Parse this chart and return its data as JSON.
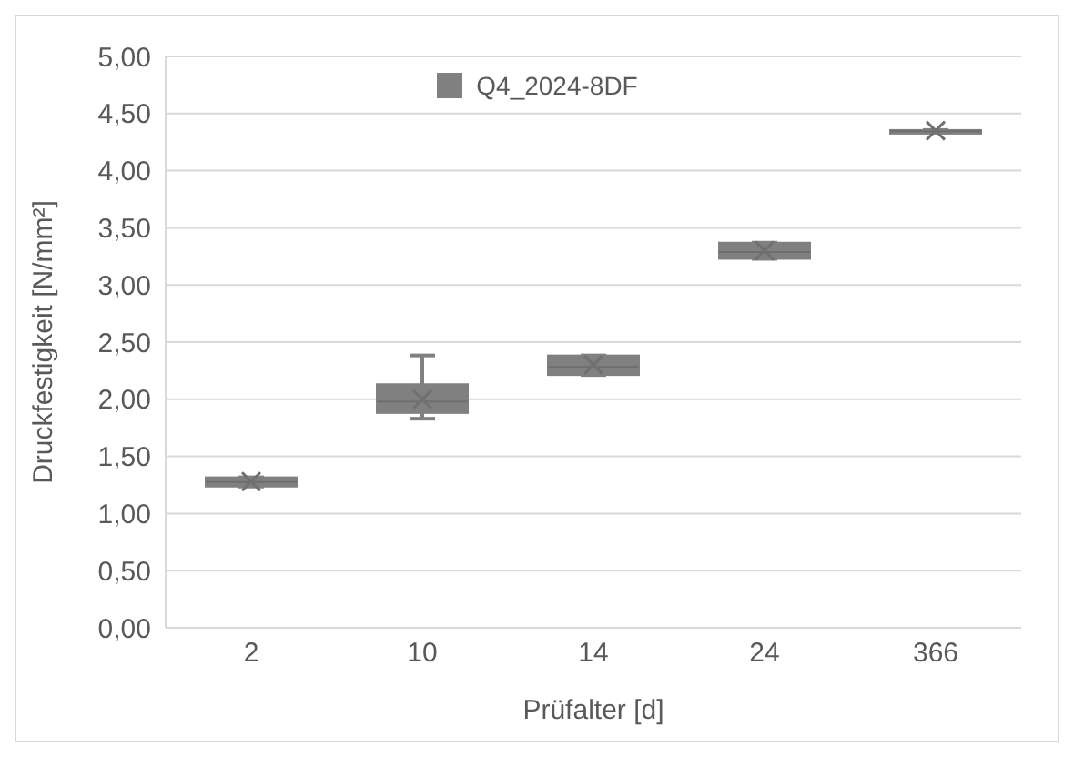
{
  "chart_data": {
    "type": "box",
    "xlabel": "Prüfalter [d]",
    "ylabel": "Druckfestigkeit  [N/mm²]",
    "categories": [
      "2",
      "10",
      "14",
      "24",
      "366"
    ],
    "series": [
      {
        "name": "Q4_2024-8DF",
        "color": "#808080",
        "boxes": [
          {
            "low": 1.26,
            "q1": 1.26,
            "median": 1.3,
            "q3": 1.34,
            "high": 1.34,
            "mean": 1.28
          },
          {
            "low": 1.85,
            "q1": 1.9,
            "median": 2.0,
            "q3": 2.15,
            "high": 2.4,
            "mean": 2.0
          },
          {
            "low": 2.23,
            "q1": 2.23,
            "median": 2.3,
            "q3": 2.4,
            "high": 2.4,
            "mean": 2.3
          },
          {
            "low": 3.24,
            "q1": 3.24,
            "median": 3.3,
            "q3": 3.38,
            "high": 3.38,
            "mean": 3.3
          },
          {
            "low": 4.34,
            "q1": 4.34,
            "median": 4.35,
            "q3": 4.36,
            "high": 4.36,
            "mean": 4.35
          }
        ]
      }
    ],
    "ylim": [
      0,
      5
    ],
    "yticks": [
      {
        "value": 0,
        "label": "0,00"
      },
      {
        "value": 0.5,
        "label": "0,50"
      },
      {
        "value": 1,
        "label": "1,00"
      },
      {
        "value": 1.5,
        "label": "1,50"
      },
      {
        "value": 2,
        "label": "2,00"
      },
      {
        "value": 2.5,
        "label": "2,50"
      },
      {
        "value": 3,
        "label": "3,00"
      },
      {
        "value": 3.5,
        "label": "3,50"
      },
      {
        "value": 4,
        "label": "4,00"
      },
      {
        "value": 4.5,
        "label": "4,50"
      },
      {
        "value": 5,
        "label": "5,00"
      }
    ],
    "grid": "y",
    "legend": "top",
    "marker": "cross"
  }
}
